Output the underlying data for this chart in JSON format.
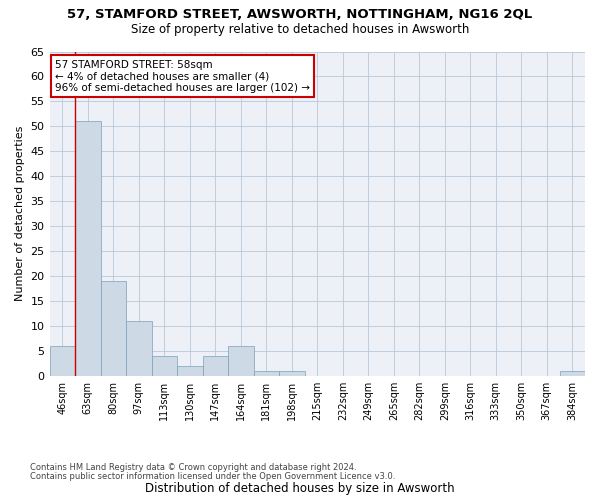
{
  "title": "57, STAMFORD STREET, AWSWORTH, NOTTINGHAM, NG16 2QL",
  "subtitle": "Size of property relative to detached houses in Awsworth",
  "xlabel": "Distribution of detached houses by size in Awsworth",
  "ylabel": "Number of detached properties",
  "bar_color": "#cdd9e5",
  "bar_edge_color": "#7aa0bc",
  "background_color": "#edf1f7",
  "categories": [
    "46sqm",
    "63sqm",
    "80sqm",
    "97sqm",
    "113sqm",
    "130sqm",
    "147sqm",
    "164sqm",
    "181sqm",
    "198sqm",
    "215sqm",
    "232sqm",
    "249sqm",
    "265sqm",
    "282sqm",
    "299sqm",
    "316sqm",
    "333sqm",
    "350sqm",
    "367sqm",
    "384sqm"
  ],
  "values": [
    6,
    51,
    19,
    11,
    4,
    2,
    4,
    6,
    1,
    1,
    0,
    0,
    0,
    0,
    0,
    0,
    0,
    0,
    0,
    0,
    1
  ],
  "ylim": [
    0,
    65
  ],
  "yticks": [
    0,
    5,
    10,
    15,
    20,
    25,
    30,
    35,
    40,
    45,
    50,
    55,
    60,
    65
  ],
  "annotation_line1": "57 STAMFORD STREET: 58sqm",
  "annotation_line2": "← 4% of detached houses are smaller (4)",
  "annotation_line3": "96% of semi-detached houses are larger (102) →",
  "annotation_box_color": "#ffffff",
  "annotation_box_edge": "#cc0000",
  "red_line_x": 0.5,
  "footer_line1": "Contains HM Land Registry data © Crown copyright and database right 2024.",
  "footer_line2": "Contains public sector information licensed under the Open Government Licence v3.0."
}
